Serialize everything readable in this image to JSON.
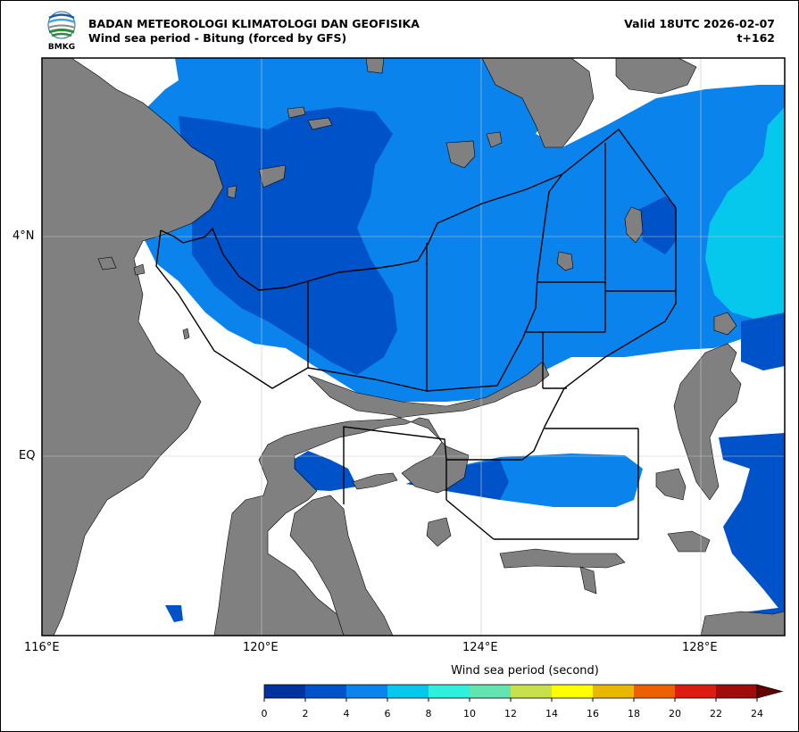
{
  "header": {
    "agency": "BADAN METEOROLOGI KLIMATOLOGI DAN GEOFISIKA",
    "subtitle": "Wind sea period - Bitung (forced by GFS)",
    "valid": "Valid 18UTC 2026-02-07",
    "lead_time": "t+162",
    "logo_text": "BMKG"
  },
  "axes": {
    "x_ticks": [
      "116°E",
      "120°E",
      "124°E",
      "128°E"
    ],
    "y_ticks": [
      "4°N",
      "EQ"
    ]
  },
  "colorbar": {
    "title": "Wind sea period (second)",
    "labels": [
      "0",
      "2",
      "4",
      "6",
      "8",
      "10",
      "12",
      "14",
      "16",
      "18",
      "20",
      "22",
      "24"
    ],
    "colors": [
      "#0033a0",
      "#0052c8",
      "#0a84ec",
      "#06c8ec",
      "#2ef0dc",
      "#64e4b0",
      "#c8e04c",
      "#ffff00",
      "#e8b800",
      "#ec6000",
      "#dc1c10",
      "#a00c0c"
    ],
    "extend_color": "#640000"
  },
  "colors": {
    "land": "#808080",
    "ocean": "#ffffff",
    "boundary": "#000000"
  }
}
